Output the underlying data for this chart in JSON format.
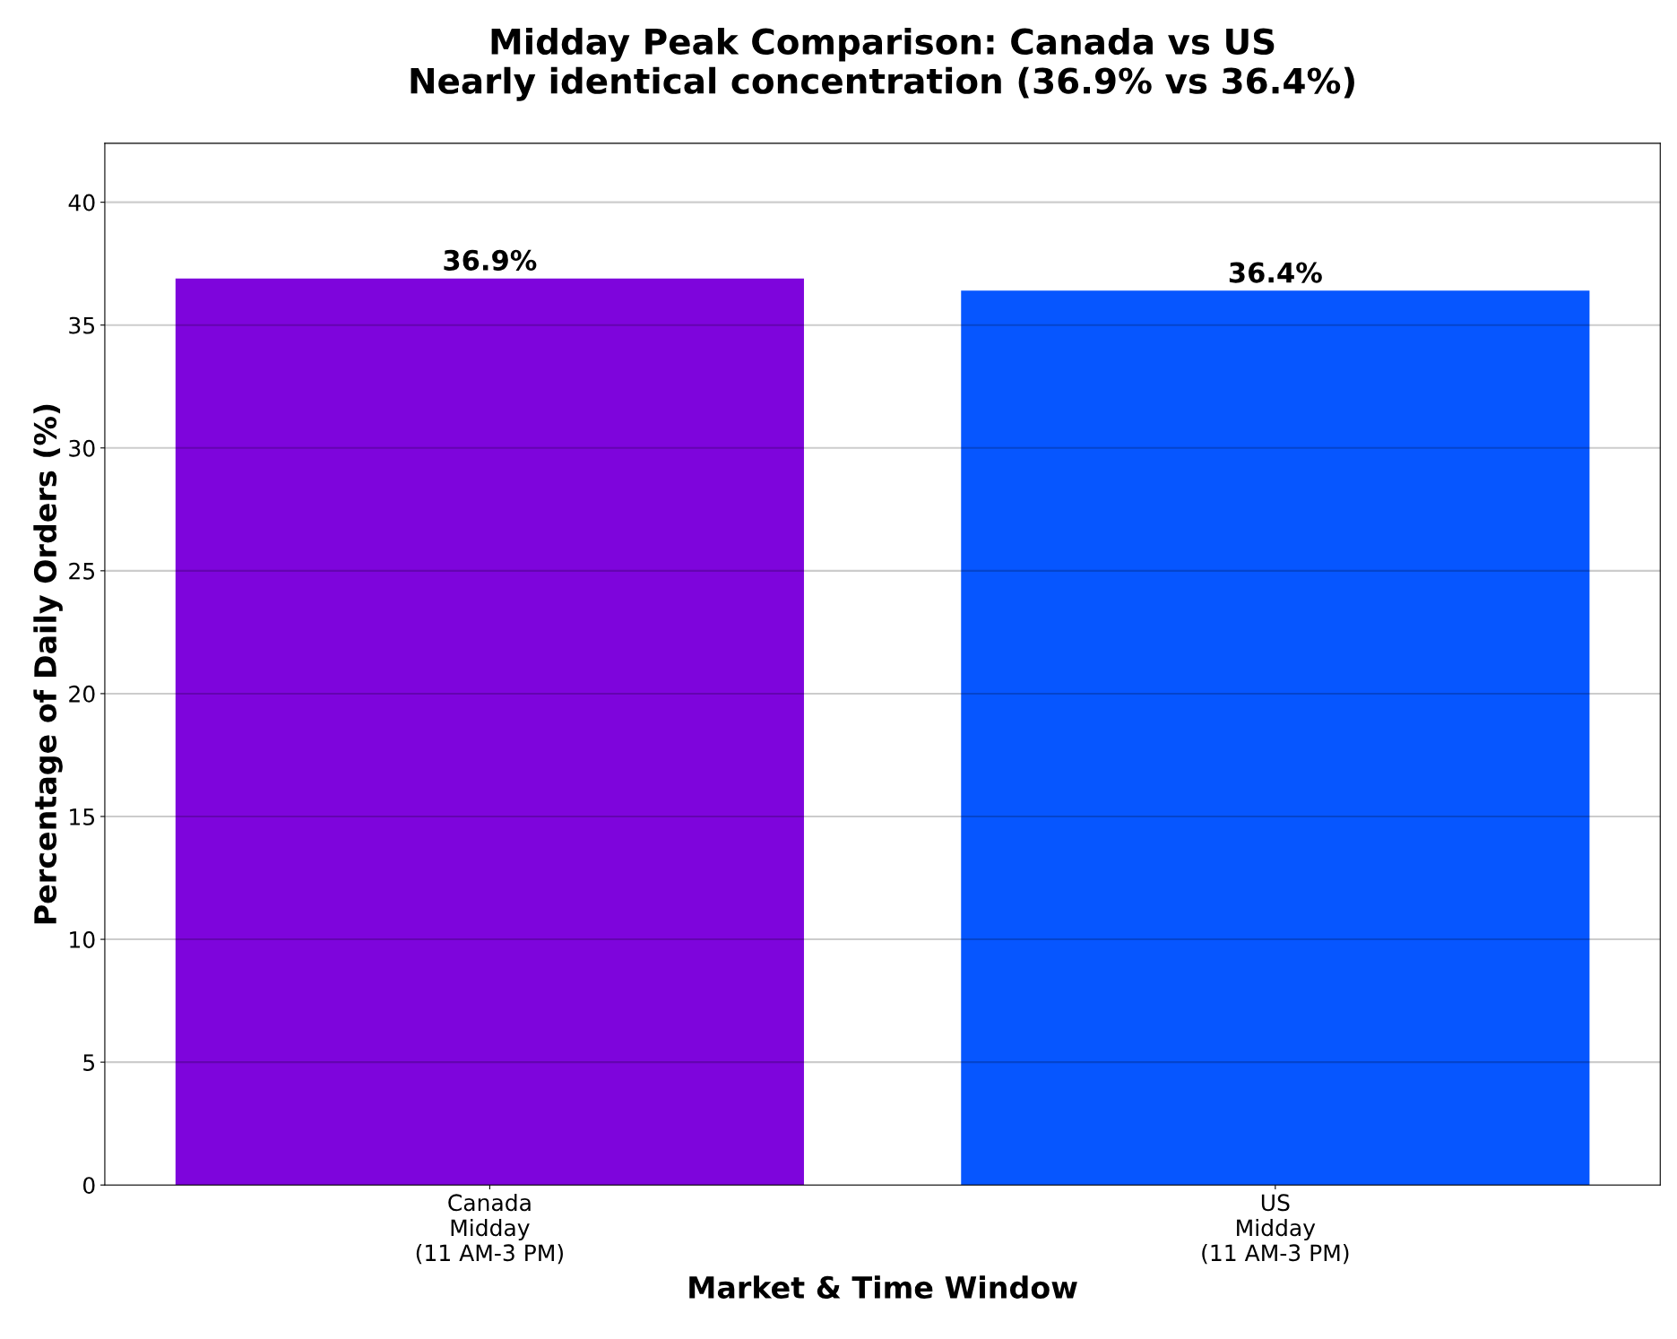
{
  "chart_data": {
    "type": "bar",
    "title": "Midday Peak Comparison: Canada vs US\nNearly identical concentration (36.9% vs 36.4%)",
    "xlabel": "Market & Time Window",
    "ylabel": "Percentage of Daily Orders (%)",
    "categories": [
      "Canada\nMidday\n(11 AM-3 PM)",
      "US\nMidday\n(11 AM-3 PM)"
    ],
    "values": [
      36.9,
      36.4
    ],
    "colors": [
      "#7e05dc",
      "#0656ff"
    ],
    "value_labels": [
      "36.9%",
      "36.4%"
    ],
    "ylim": [
      0,
      42.4
    ],
    "yticks": [
      0,
      5,
      10,
      15,
      20,
      25,
      30,
      35,
      40
    ],
    "grid": "y",
    "legend": false
  }
}
